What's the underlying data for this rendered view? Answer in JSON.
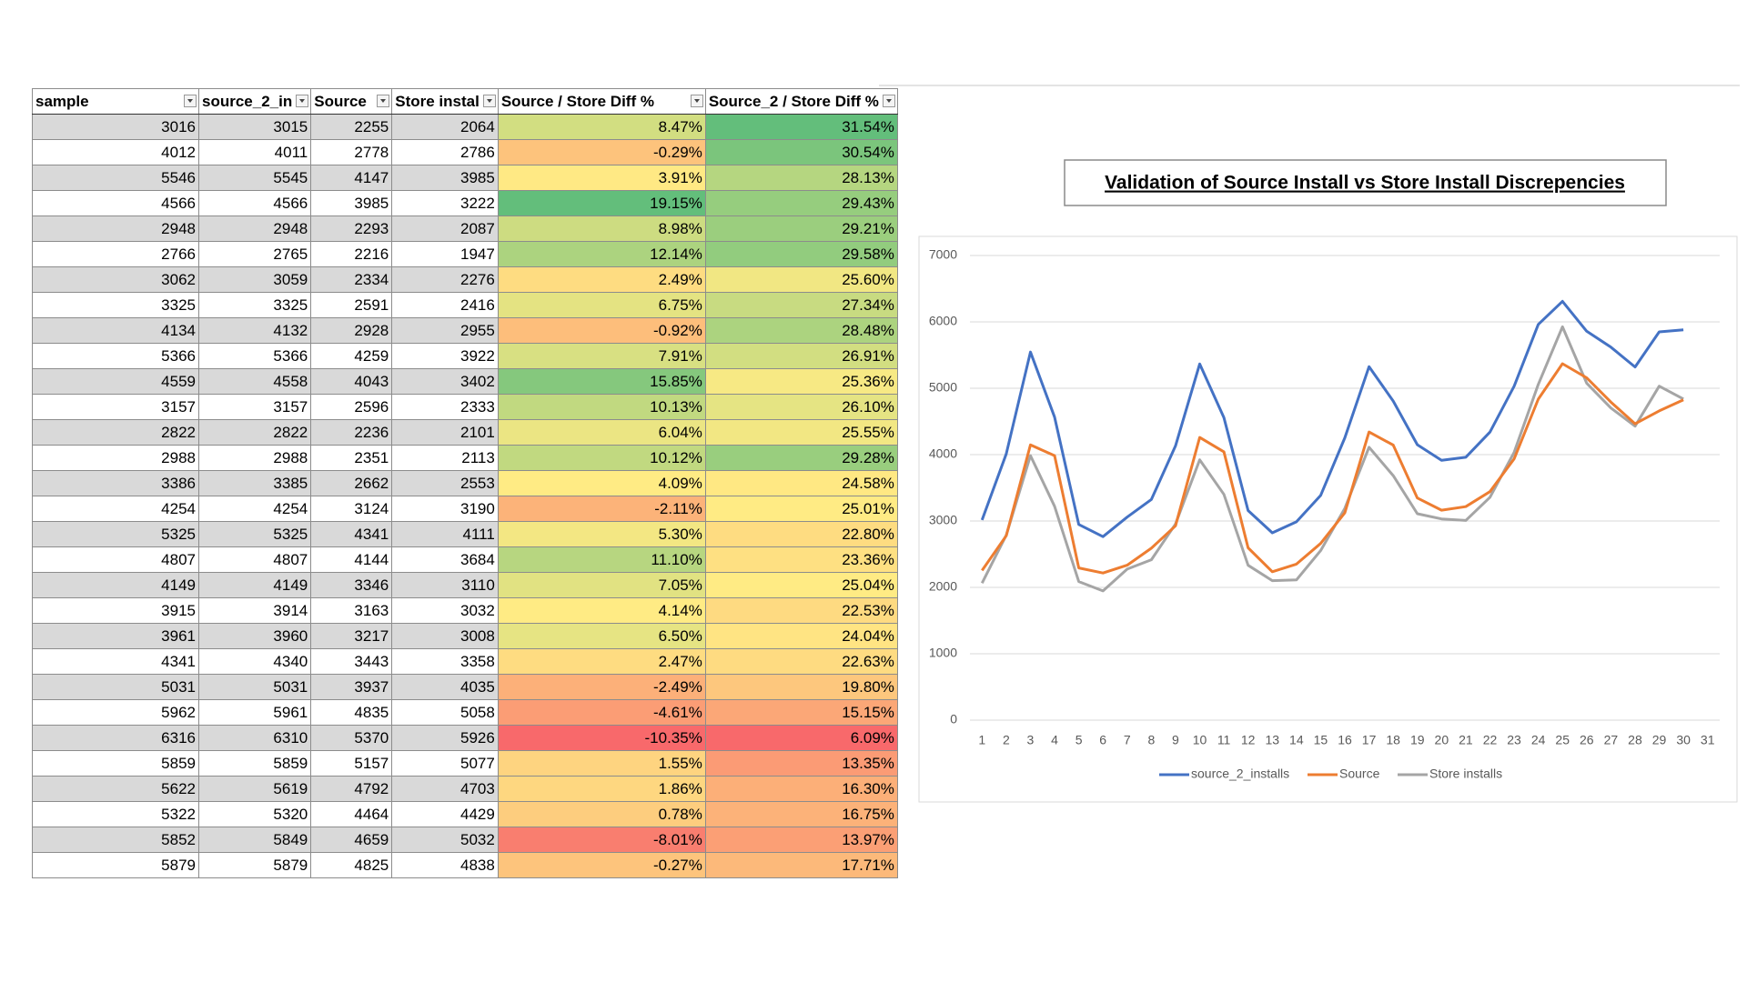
{
  "table": {
    "headers": [
      "sample",
      "source_2_in",
      "Source",
      "Store instal",
      "Source / Store Diff %",
      "Source_2 / Store Diff %"
    ],
    "rows": [
      [
        3016,
        3015,
        2255,
        2064,
        "8.47%",
        "31.54%"
      ],
      [
        4012,
        4011,
        2778,
        2786,
        "-0.29%",
        "30.54%"
      ],
      [
        5546,
        5545,
        4147,
        3985,
        "3.91%",
        "28.13%"
      ],
      [
        4566,
        4566,
        3985,
        3222,
        "19.15%",
        "29.43%"
      ],
      [
        2948,
        2948,
        2293,
        2087,
        "8.98%",
        "29.21%"
      ],
      [
        2766,
        2765,
        2216,
        1947,
        "12.14%",
        "29.58%"
      ],
      [
        3062,
        3059,
        2334,
        2276,
        "2.49%",
        "25.60%"
      ],
      [
        3325,
        3325,
        2591,
        2416,
        "6.75%",
        "27.34%"
      ],
      [
        4134,
        4132,
        2928,
        2955,
        "-0.92%",
        "28.48%"
      ],
      [
        5366,
        5366,
        4259,
        3922,
        "7.91%",
        "26.91%"
      ],
      [
        4559,
        4558,
        4043,
        3402,
        "15.85%",
        "25.36%"
      ],
      [
        3157,
        3157,
        2596,
        2333,
        "10.13%",
        "26.10%"
      ],
      [
        2822,
        2822,
        2236,
        2101,
        "6.04%",
        "25.55%"
      ],
      [
        2988,
        2988,
        2351,
        2113,
        "10.12%",
        "29.28%"
      ],
      [
        3386,
        3385,
        2662,
        2553,
        "4.09%",
        "24.58%"
      ],
      [
        4254,
        4254,
        3124,
        3190,
        "-2.11%",
        "25.01%"
      ],
      [
        5325,
        5325,
        4341,
        4111,
        "5.30%",
        "22.80%"
      ],
      [
        4807,
        4807,
        4144,
        3684,
        "11.10%",
        "23.36%"
      ],
      [
        4149,
        4149,
        3346,
        3110,
        "7.05%",
        "25.04%"
      ],
      [
        3915,
        3914,
        3163,
        3032,
        "4.14%",
        "22.53%"
      ],
      [
        3961,
        3960,
        3217,
        3008,
        "6.50%",
        "24.04%"
      ],
      [
        4341,
        4340,
        3443,
        3358,
        "2.47%",
        "22.63%"
      ],
      [
        5031,
        5031,
        3937,
        4035,
        "-2.49%",
        "19.80%"
      ],
      [
        5962,
        5961,
        4835,
        5058,
        "-4.61%",
        "15.15%"
      ],
      [
        6316,
        6310,
        5370,
        5926,
        "-10.35%",
        "6.09%"
      ],
      [
        5859,
        5859,
        5157,
        5077,
        "1.55%",
        "13.35%"
      ],
      [
        5622,
        5619,
        4792,
        4703,
        "1.86%",
        "16.30%"
      ],
      [
        5322,
        5320,
        4464,
        4429,
        "0.78%",
        "16.75%"
      ],
      [
        5852,
        5849,
        4659,
        5032,
        "-8.01%",
        "13.97%"
      ],
      [
        5879,
        5879,
        4825,
        4838,
        "-0.27%",
        "17.71%"
      ]
    ]
  },
  "chart_data": {
    "type": "line",
    "title": "Validation of Source Install vs Store Install Discrepencies",
    "categories": [
      1,
      2,
      3,
      4,
      5,
      6,
      7,
      8,
      9,
      10,
      11,
      12,
      13,
      14,
      15,
      16,
      17,
      18,
      19,
      20,
      21,
      22,
      23,
      24,
      25,
      26,
      27,
      28,
      29,
      30,
      31
    ],
    "series": [
      {
        "name": "source_2_installs",
        "color": "#4472c4",
        "values": [
          3015,
          4011,
          5545,
          4566,
          2948,
          2765,
          3059,
          3325,
          4132,
          5366,
          4558,
          3157,
          2822,
          2988,
          3385,
          4254,
          5325,
          4807,
          4149,
          3914,
          3960,
          4340,
          5031,
          5961,
          6310,
          5859,
          5619,
          5320,
          5849,
          5879,
          null
        ]
      },
      {
        "name": "Source",
        "color": "#ed7d31",
        "values": [
          2255,
          2778,
          4147,
          3985,
          2293,
          2216,
          2334,
          2591,
          2928,
          4259,
          4043,
          2596,
          2236,
          2351,
          2662,
          3124,
          4341,
          4144,
          3346,
          3163,
          3217,
          3443,
          3937,
          4835,
          5370,
          5157,
          4792,
          4464,
          4659,
          4825,
          null
        ]
      },
      {
        "name": "Store installs",
        "color": "#a5a5a5",
        "values": [
          2064,
          2786,
          3985,
          3222,
          2087,
          1947,
          2276,
          2416,
          2955,
          3922,
          3402,
          2333,
          2101,
          2113,
          2553,
          3190,
          4111,
          3684,
          3110,
          3032,
          3008,
          3358,
          4035,
          5058,
          5926,
          5077,
          4703,
          4429,
          5032,
          4838,
          null
        ]
      }
    ],
    "ylim": [
      0,
      7000
    ],
    "yticks": [
      0,
      1000,
      2000,
      3000,
      4000,
      5000,
      6000,
      7000
    ],
    "grid": true,
    "legend": "bottom"
  }
}
